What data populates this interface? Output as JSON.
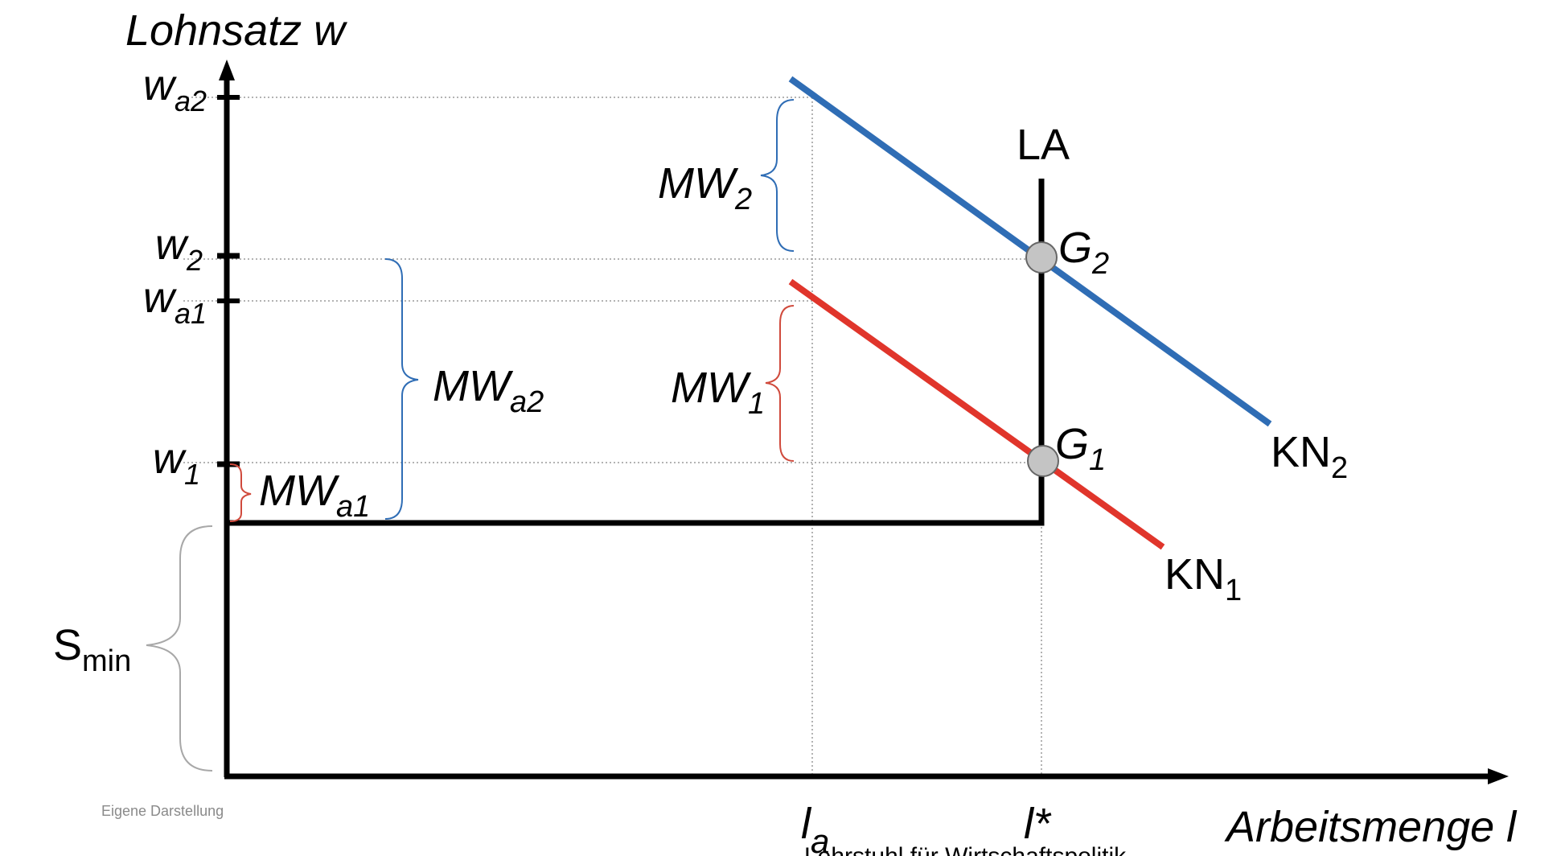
{
  "diagram": {
    "axis_y_label": "Lohnsatz w",
    "axis_x_label": "Arbeitsmenge l",
    "source_note": "Eigene Darstellung",
    "caption_fragment": "Lehrstuhl für Wirtschaftspolitik",
    "wage_ticks": [
      {
        "main": "w",
        "sub": "a2"
      },
      {
        "main": "w",
        "sub": "2"
      },
      {
        "main": "w",
        "sub": "a1"
      },
      {
        "main": "w",
        "sub": "1"
      }
    ],
    "quantity_ticks": [
      {
        "main": "l",
        "sub": "a"
      },
      {
        "main": "l*",
        "sub": ""
      }
    ],
    "curves": {
      "la": "LA",
      "kn1": {
        "main": "KN",
        "sub": "1"
      },
      "kn2": {
        "main": "KN",
        "sub": "2"
      }
    },
    "points": {
      "g1": {
        "main": "G",
        "sub": "1"
      },
      "g2": {
        "main": "G",
        "sub": "2"
      }
    },
    "braces": {
      "mw2": {
        "main": "MW",
        "sub": "2"
      },
      "mw1": {
        "main": "MW",
        "sub": "1"
      },
      "mwa2": {
        "main": "MW",
        "sub": "a2"
      },
      "mwa1": {
        "main": "MW",
        "sub": "a1"
      },
      "smin": {
        "main": "S",
        "sub": "min"
      }
    },
    "colors": {
      "axis": "#000000",
      "kn1": "#e0352b",
      "kn2": "#2f6db5",
      "brace_red": "#d04a3c",
      "brace_blue": "#2f6db5",
      "brace_grey": "#a8a8a8",
      "point_fill": "#c4c4c4",
      "guide": "#9a9a9a"
    }
  }
}
